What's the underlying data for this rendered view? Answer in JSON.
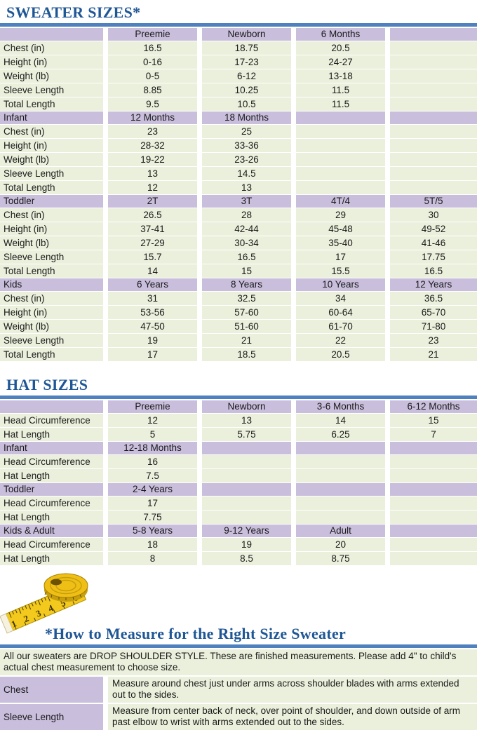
{
  "page": {
    "sweater_title": "SWEATER SIZES*",
    "hat_title": "HAT SIZES",
    "measure_title": "*How to Measure for the Right Size Sweater"
  },
  "colors": {
    "heading_text": "#1F5795",
    "rule_blue": "#4E81BD",
    "header_lavender": "#C9BEDC",
    "cell_green": "#EBF0DC",
    "tape_yellow": "#F2C91C"
  },
  "sweater_table": {
    "sections": [
      {
        "header": [
          "",
          "Preemie",
          "Newborn",
          "6 Months",
          ""
        ],
        "rows": [
          [
            "Chest (in)",
            "16.5",
            "18.75",
            "20.5",
            ""
          ],
          [
            "Height (in)",
            "0-16",
            "17-23",
            "24-27",
            ""
          ],
          [
            "Weight (lb)",
            "0-5",
            "6-12",
            "13-18",
            ""
          ],
          [
            "Sleeve Length",
            "8.85",
            "10.25",
            "11.5",
            ""
          ],
          [
            "Total Length",
            "9.5",
            "10.5",
            "11.5",
            ""
          ]
        ]
      },
      {
        "header": [
          "Infant",
          "12 Months",
          "18 Months",
          "",
          ""
        ],
        "rows": [
          [
            "Chest (in)",
            "23",
            "25",
            "",
            ""
          ],
          [
            "Height (in)",
            "28-32",
            "33-36",
            "",
            ""
          ],
          [
            "Weight (lb)",
            "19-22",
            "23-26",
            "",
            ""
          ],
          [
            "Sleeve Length",
            "13",
            "14.5",
            "",
            ""
          ],
          [
            "Total Length",
            "12",
            "13",
            "",
            ""
          ]
        ]
      },
      {
        "header": [
          "Toddler",
          "2T",
          "3T",
          "4T/4",
          "5T/5"
        ],
        "rows": [
          [
            "Chest (in)",
            "26.5",
            "28",
            "29",
            "30"
          ],
          [
            "Height (in)",
            "37-41",
            "42-44",
            "45-48",
            "49-52"
          ],
          [
            "Weight (lb)",
            "27-29",
            "30-34",
            "35-40",
            "41-46"
          ],
          [
            "Sleeve Length",
            "15.7",
            "16.5",
            "17",
            "17.75"
          ],
          [
            "Total Length",
            "14",
            "15",
            "15.5",
            "16.5"
          ]
        ]
      },
      {
        "header": [
          "Kids",
          "6 Years",
          "8 Years",
          "10 Years",
          "12 Years"
        ],
        "rows": [
          [
            "Chest (in)",
            "31",
            "32.5",
            "34",
            "36.5"
          ],
          [
            "Height (in)",
            "53-56",
            "57-60",
            "60-64",
            "65-70"
          ],
          [
            "Weight (lb)",
            "47-50",
            "51-60",
            "61-70",
            "71-80"
          ],
          [
            "Sleeve Length",
            "19",
            "21",
            "22",
            "23"
          ],
          [
            "Total Length",
            "17",
            "18.5",
            "20.5",
            "21"
          ]
        ]
      }
    ]
  },
  "hat_table": {
    "sections": [
      {
        "header": [
          "",
          "Preemie",
          "Newborn",
          "3-6 Months",
          "6-12 Months"
        ],
        "rows": [
          [
            "Head Circumference",
            "12",
            "13",
            "14",
            "15"
          ],
          [
            "Hat Length",
            "5",
            "5.75",
            "6.25",
            "7"
          ]
        ]
      },
      {
        "header": [
          "Infant",
          "12-18 Months",
          "",
          "",
          ""
        ],
        "rows": [
          [
            "Head Circumference",
            "16",
            "",
            "",
            ""
          ],
          [
            "Hat Length",
            "7.5",
            "",
            "",
            ""
          ]
        ]
      },
      {
        "header": [
          "Toddler",
          "2-4 Years",
          "",
          "",
          ""
        ],
        "rows": [
          [
            "Head Circumference",
            "17",
            "",
            "",
            ""
          ],
          [
            "Hat Length",
            "7.75",
            "",
            "",
            ""
          ]
        ]
      },
      {
        "header": [
          "Kids & Adult",
          "5-8 Years",
          "9-12 Years",
          "Adult",
          ""
        ],
        "rows": [
          [
            "Head Circumference",
            "18",
            "19",
            "20",
            ""
          ],
          [
            "Hat Length",
            "8",
            "8.5",
            "8.75",
            ""
          ]
        ]
      }
    ]
  },
  "measure_info": {
    "intro": "All our sweaters are DROP SHOULDER STYLE.  These are finished measurements.  Please add 4\" to child's actual chest measurement to choose size.",
    "rows": [
      {
        "label": "Chest",
        "text": "Measure around chest just under arms across shoulder blades with arms extended out to the sides."
      },
      {
        "label": "Sleeve Length",
        "text": "Measure from center back of neck, over point of shoulder, and down outside of arm past elbow to wrist with arms extended out to the sides."
      }
    ]
  },
  "tape_image": {
    "numbers": [
      "1",
      "2",
      "3",
      "4",
      "5",
      "6"
    ]
  }
}
